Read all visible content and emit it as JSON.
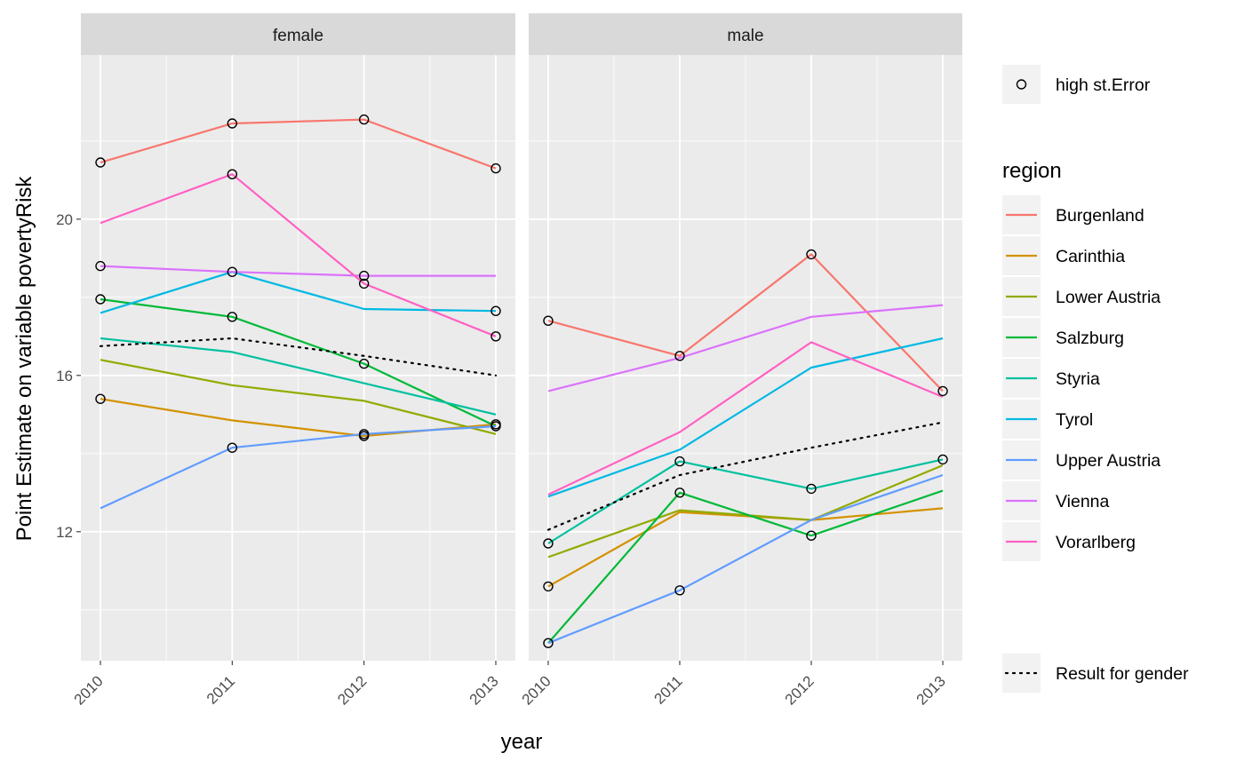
{
  "chart_data": {
    "type": "line",
    "xlabel": "year",
    "ylabel": "Point Estimate on variable povertyRisk",
    "x": [
      "2010",
      "2011",
      "2012",
      "2013"
    ],
    "ylim": [
      8.7,
      24.2
    ],
    "yticks": [
      12,
      16,
      20
    ],
    "grid": true,
    "facets": [
      "female",
      "male"
    ],
    "legend": {
      "position": "right",
      "point_label": "high st.Error",
      "region_title": "region",
      "overall_label": "Result for gender"
    },
    "series": [
      {
        "name": "Burgenland",
        "color": "#F8766D",
        "female": [
          21.45,
          22.45,
          22.55,
          21.3
        ],
        "male": [
          17.4,
          16.5,
          19.1,
          15.6
        ]
      },
      {
        "name": "Carinthia",
        "color": "#D39200",
        "female": [
          15.4,
          14.85,
          14.45,
          14.75
        ],
        "male": [
          10.6,
          12.5,
          12.3,
          12.6
        ]
      },
      {
        "name": "Lower Austria",
        "color": "#93AA00",
        "female": [
          16.4,
          15.75,
          15.35,
          14.5
        ],
        "male": [
          11.35,
          12.55,
          12.3,
          13.7
        ]
      },
      {
        "name": "Salzburg",
        "color": "#00BA38",
        "female": [
          17.95,
          17.5,
          16.3,
          14.7
        ],
        "male": [
          9.15,
          13.0,
          11.9,
          13.05
        ]
      },
      {
        "name": "Styria",
        "color": "#00C19F",
        "female": [
          16.95,
          16.6,
          15.8,
          15.0
        ],
        "male": [
          11.7,
          13.8,
          13.1,
          13.85
        ]
      },
      {
        "name": "Tyrol",
        "color": "#00B9E3",
        "female": [
          17.6,
          18.65,
          17.7,
          17.65
        ],
        "male": [
          12.9,
          14.1,
          16.2,
          16.95
        ]
      },
      {
        "name": "Upper Austria",
        "color": "#619CFF",
        "female": [
          12.6,
          14.15,
          14.5,
          14.7
        ],
        "male": [
          9.15,
          10.5,
          12.3,
          13.45
        ]
      },
      {
        "name": "Vienna",
        "color": "#DB72FB",
        "female": [
          18.8,
          18.65,
          18.55,
          18.55
        ],
        "male": [
          15.6,
          16.45,
          17.5,
          17.8
        ]
      },
      {
        "name": "Vorarlberg",
        "color": "#FF61C3",
        "female": [
          19.9,
          21.15,
          18.35,
          17.0
        ],
        "male": [
          12.95,
          14.55,
          16.85,
          15.45
        ]
      }
    ],
    "overall": {
      "female": [
        16.75,
        16.95,
        16.5,
        16.0
      ],
      "male": [
        12.05,
        13.45,
        14.15,
        14.8
      ]
    },
    "high_st_error_points": {
      "female": [
        [
          "2010",
          21.45
        ],
        [
          "2011",
          22.45
        ],
        [
          "2012",
          22.55
        ],
        [
          "2013",
          21.3
        ],
        [
          "2011",
          21.15
        ],
        [
          "2012",
          18.35
        ],
        [
          "2013",
          17.0
        ],
        [
          "2010",
          18.8
        ],
        [
          "2011",
          18.65
        ],
        [
          "2012",
          18.55
        ],
        [
          "2013",
          17.65
        ],
        [
          "2010",
          17.95
        ],
        [
          "2011",
          17.5
        ],
        [
          "2012",
          16.3
        ],
        [
          "2010",
          15.4
        ],
        [
          "2012",
          14.45
        ],
        [
          "2012",
          14.5
        ],
        [
          "2013",
          14.75
        ],
        [
          "2013",
          14.7
        ],
        [
          "2011",
          14.15
        ]
      ],
      "male": [
        [
          "2010",
          17.4
        ],
        [
          "2011",
          16.5
        ],
        [
          "2012",
          19.1
        ],
        [
          "2013",
          15.6
        ],
        [
          "2010",
          11.7
        ],
        [
          "2010",
          10.6
        ],
        [
          "2010",
          9.15
        ],
        [
          "2011",
          13.8
        ],
        [
          "2011",
          13.0
        ],
        [
          "2011",
          10.5
        ],
        [
          "2012",
          13.1
        ],
        [
          "2012",
          11.9
        ],
        [
          "2013",
          13.85
        ]
      ]
    }
  }
}
